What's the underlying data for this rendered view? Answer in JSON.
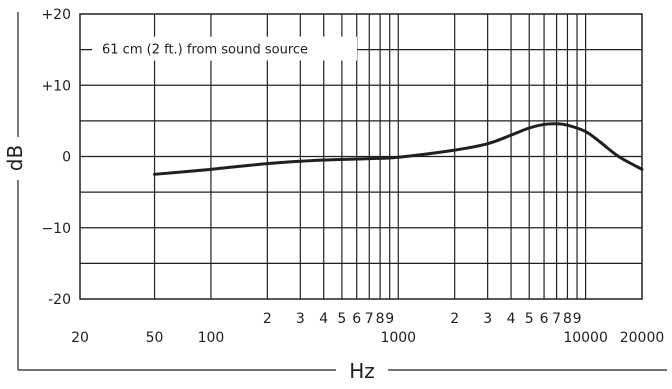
{
  "chart_data": {
    "type": "line",
    "xlabel": "Hz",
    "ylabel": "dB",
    "x_scale": "log",
    "xlim": [
      20,
      20000
    ],
    "ylim": [
      -20,
      20
    ],
    "grid": true,
    "annotation": "61 cm (2 ft.) from sound source",
    "y_ticks": [
      {
        "value": 20,
        "label": "+20"
      },
      {
        "value": 10,
        "label": "+10"
      },
      {
        "value": 0,
        "label": "0"
      },
      {
        "value": -10,
        "label": "−10"
      },
      {
        "value": -20,
        "label": "-20"
      }
    ],
    "x_tick_labels": [
      {
        "value": 20,
        "label": "20",
        "row": "major"
      },
      {
        "value": 50,
        "label": "50",
        "row": "major"
      },
      {
        "value": 100,
        "label": "100",
        "row": "major"
      },
      {
        "value": 200,
        "label": "2",
        "row": "minor"
      },
      {
        "value": 300,
        "label": "3",
        "row": "minor"
      },
      {
        "value": 400,
        "label": "4",
        "row": "minor"
      },
      {
        "value": 500,
        "label": "5",
        "row": "minor"
      },
      {
        "value": 600,
        "label": "6",
        "row": "minor"
      },
      {
        "value": 700,
        "label": "7",
        "row": "minor"
      },
      {
        "value": 800,
        "label": "8",
        "row": "minor"
      },
      {
        "value": 900,
        "label": "9",
        "row": "minor"
      },
      {
        "value": 1000,
        "label": "1000",
        "row": "major"
      },
      {
        "value": 2000,
        "label": "2",
        "row": "minor"
      },
      {
        "value": 3000,
        "label": "3",
        "row": "minor"
      },
      {
        "value": 4000,
        "label": "4",
        "row": "minor"
      },
      {
        "value": 5000,
        "label": "5",
        "row": "minor"
      },
      {
        "value": 6000,
        "label": "6",
        "row": "minor"
      },
      {
        "value": 7000,
        "label": "7",
        "row": "minor"
      },
      {
        "value": 8000,
        "label": "8",
        "row": "minor"
      },
      {
        "value": 9000,
        "label": "9",
        "row": "minor"
      },
      {
        "value": 10000,
        "label": "10000",
        "row": "major"
      },
      {
        "value": 20000,
        "label": "20000",
        "row": "major"
      }
    ],
    "series": [
      {
        "x": [
          50,
          100,
          200,
          400,
          700,
          1000,
          2000,
          3000,
          4000,
          5000,
          6000,
          7000,
          8000,
          10000,
          12000,
          15000,
          20000
        ],
        "y": [
          -2.5,
          -1.8,
          -1.0,
          -0.5,
          -0.3,
          -0.1,
          0.9,
          1.8,
          3.0,
          4.0,
          4.5,
          4.6,
          4.4,
          3.5,
          2.0,
          0.0,
          -1.8
        ]
      }
    ]
  }
}
